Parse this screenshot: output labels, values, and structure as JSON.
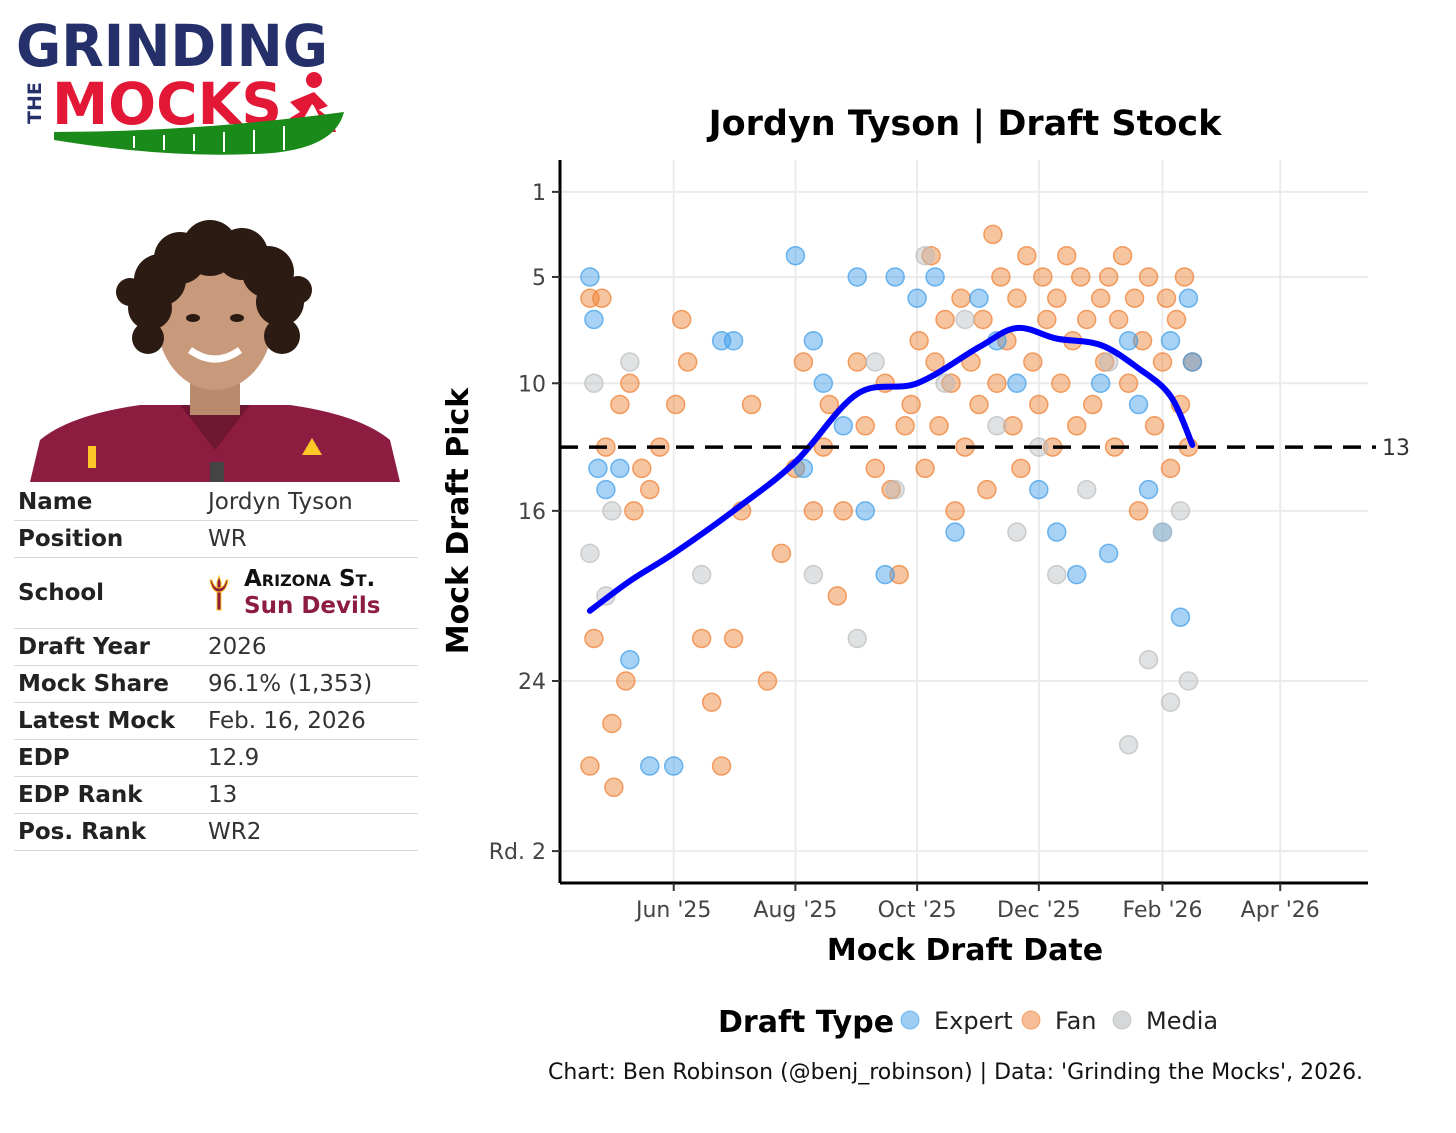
{
  "logo": {
    "line1": "GRINDING",
    "line2": "MOCKS",
    "the": "THE"
  },
  "player_info": {
    "rows": [
      {
        "label": "Name",
        "value": "Jordyn Tyson"
      },
      {
        "label": "Position",
        "value": "WR"
      },
      {
        "label": "School",
        "abbr": "Arizona St.",
        "mascot": "Sun Devils"
      },
      {
        "label": "Draft Year",
        "value": "2026"
      },
      {
        "label": "Mock Share",
        "value": "96.1% (1,353)"
      },
      {
        "label": "Latest Mock",
        "value": "Feb. 16, 2026"
      },
      {
        "label": "EDP",
        "value": "12.9"
      },
      {
        "label": "EDP Rank",
        "value": "13"
      },
      {
        "label": "Pos. Rank",
        "value": "WR2"
      }
    ]
  },
  "colors": {
    "navy": "#25306a",
    "red": "#e31837",
    "green": "#1a8a1a",
    "maroon": "#8c1d40",
    "gold": "#ffc627",
    "expert": "#3b9be8",
    "fan": "#ee7c2d",
    "media": "#b9bcbe",
    "trend": "#0000ff"
  },
  "credit": "Chart: Ben Robinson (@benj_robinson) | Data: 'Grinding the Mocks', 2026.",
  "chart_data": {
    "type": "scatter",
    "title": "Jordyn Tyson | Draft Stock",
    "xlabel": "Mock Draft Date",
    "ylabel": "Mock Draft Pick",
    "x_axis": {
      "min": "2025-04-05",
      "max": "2026-05-15",
      "ticks": [
        {
          "date": "2025-06-01",
          "label": "Jun '25"
        },
        {
          "date": "2025-08-01",
          "label": "Aug '25"
        },
        {
          "date": "2025-10-01",
          "label": "Oct '25"
        },
        {
          "date": "2025-12-01",
          "label": "Dec '25"
        },
        {
          "date": "2026-02-01",
          "label": "Feb '26"
        },
        {
          "date": "2026-04-01",
          "label": "Apr '26"
        }
      ]
    },
    "y_axis": {
      "reversed": true,
      "min": -0.5,
      "max": 33.5,
      "ticks": [
        {
          "value": 1,
          "label": "1"
        },
        {
          "value": 5,
          "label": "5"
        },
        {
          "value": 10,
          "label": "10"
        },
        {
          "value": 16,
          "label": "16"
        },
        {
          "value": 24,
          "label": "24"
        },
        {
          "value": 32,
          "label": "Rd. 2"
        }
      ]
    },
    "grid": true,
    "reference_line": {
      "value": 13,
      "label": "13",
      "style": "dashed"
    },
    "legend": {
      "title": "Draft Type",
      "position": "bottom",
      "entries": [
        "Expert",
        "Fan",
        "Media"
      ]
    },
    "trend": {
      "type": "smooth",
      "points": [
        [
          "2025-04-20",
          20.7
        ],
        [
          "2025-05-10",
          19.3
        ],
        [
          "2025-06-01",
          18.0
        ],
        [
          "2025-07-01",
          16.0
        ],
        [
          "2025-08-01",
          13.7
        ],
        [
          "2025-09-01",
          10.5
        ],
        [
          "2025-10-01",
          10.0
        ],
        [
          "2025-11-01",
          8.3
        ],
        [
          "2025-11-20",
          7.4
        ],
        [
          "2025-12-10",
          7.9
        ],
        [
          "2026-01-01",
          8.2
        ],
        [
          "2026-01-20",
          9.3
        ],
        [
          "2026-02-05",
          10.6
        ],
        [
          "2026-02-16",
          12.9
        ]
      ]
    },
    "series": [
      {
        "name": "Fan",
        "points": [
          [
            "2025-04-20",
            6
          ],
          [
            "2025-04-22",
            22
          ],
          [
            "2025-04-26",
            6
          ],
          [
            "2025-04-20",
            28
          ],
          [
            "2025-04-28",
            13
          ],
          [
            "2025-05-01",
            26
          ],
          [
            "2025-05-02",
            29
          ],
          [
            "2025-05-05",
            11
          ],
          [
            "2025-05-08",
            24
          ],
          [
            "2025-05-10",
            10
          ],
          [
            "2025-05-12",
            16
          ],
          [
            "2025-05-16",
            14
          ],
          [
            "2025-05-20",
            15
          ],
          [
            "2025-05-25",
            13
          ],
          [
            "2025-06-02",
            11
          ],
          [
            "2025-06-05",
            7
          ],
          [
            "2025-06-08",
            9
          ],
          [
            "2025-06-15",
            22
          ],
          [
            "2025-06-20",
            25
          ],
          [
            "2025-06-25",
            28
          ],
          [
            "2025-07-01",
            22
          ],
          [
            "2025-07-05",
            16
          ],
          [
            "2025-07-10",
            11
          ],
          [
            "2025-07-18",
            24
          ],
          [
            "2025-07-25",
            18
          ],
          [
            "2025-08-01",
            14
          ],
          [
            "2025-08-05",
            9
          ],
          [
            "2025-08-10",
            16
          ],
          [
            "2025-08-15",
            13
          ],
          [
            "2025-08-18",
            11
          ],
          [
            "2025-08-22",
            20
          ],
          [
            "2025-08-25",
            16
          ],
          [
            "2025-09-01",
            9
          ],
          [
            "2025-09-05",
            12
          ],
          [
            "2025-09-10",
            14
          ],
          [
            "2025-09-15",
            10
          ],
          [
            "2025-09-18",
            15
          ],
          [
            "2025-09-22",
            19
          ],
          [
            "2025-09-25",
            12
          ],
          [
            "2025-09-28",
            11
          ],
          [
            "2025-10-02",
            8
          ],
          [
            "2025-10-05",
            14
          ],
          [
            "2025-10-08",
            4
          ],
          [
            "2025-10-10",
            9
          ],
          [
            "2025-10-12",
            12
          ],
          [
            "2025-10-15",
            7
          ],
          [
            "2025-10-18",
            10
          ],
          [
            "2025-10-20",
            16
          ],
          [
            "2025-10-23",
            6
          ],
          [
            "2025-10-25",
            13
          ],
          [
            "2025-10-28",
            9
          ],
          [
            "2025-11-01",
            11
          ],
          [
            "2025-11-03",
            7
          ],
          [
            "2025-11-05",
            15
          ],
          [
            "2025-11-08",
            3
          ],
          [
            "2025-11-10",
            10
          ],
          [
            "2025-11-12",
            5
          ],
          [
            "2025-11-15",
            8
          ],
          [
            "2025-11-18",
            12
          ],
          [
            "2025-11-20",
            6
          ],
          [
            "2025-11-22",
            14
          ],
          [
            "2025-11-25",
            4
          ],
          [
            "2025-11-28",
            9
          ],
          [
            "2025-12-01",
            11
          ],
          [
            "2025-12-03",
            5
          ],
          [
            "2025-12-05",
            7
          ],
          [
            "2025-12-08",
            13
          ],
          [
            "2025-12-10",
            6
          ],
          [
            "2025-12-12",
            10
          ],
          [
            "2025-12-15",
            4
          ],
          [
            "2025-12-18",
            8
          ],
          [
            "2025-12-20",
            12
          ],
          [
            "2025-12-22",
            5
          ],
          [
            "2025-12-25",
            7
          ],
          [
            "2025-12-28",
            11
          ],
          [
            "2026-01-01",
            6
          ],
          [
            "2026-01-03",
            9
          ],
          [
            "2026-01-05",
            5
          ],
          [
            "2026-01-08",
            13
          ],
          [
            "2026-01-10",
            7
          ],
          [
            "2026-01-12",
            4
          ],
          [
            "2026-01-15",
            10
          ],
          [
            "2026-01-18",
            6
          ],
          [
            "2026-01-20",
            16
          ],
          [
            "2026-01-22",
            8
          ],
          [
            "2026-01-25",
            5
          ],
          [
            "2026-01-28",
            12
          ],
          [
            "2026-02-01",
            9
          ],
          [
            "2026-02-03",
            6
          ],
          [
            "2026-02-05",
            14
          ],
          [
            "2026-02-08",
            7
          ],
          [
            "2026-02-10",
            11
          ],
          [
            "2026-02-12",
            5
          ],
          [
            "2026-02-14",
            13
          ],
          [
            "2026-02-16",
            9
          ]
        ]
      },
      {
        "name": "Expert",
        "points": [
          [
            "2025-04-20",
            5
          ],
          [
            "2025-04-22",
            7
          ],
          [
            "2025-04-24",
            14
          ],
          [
            "2025-04-28",
            15
          ],
          [
            "2025-05-05",
            14
          ],
          [
            "2025-05-10",
            23
          ],
          [
            "2025-05-20",
            28
          ],
          [
            "2025-06-01",
            28
          ],
          [
            "2025-06-25",
            8
          ],
          [
            "2025-07-01",
            8
          ],
          [
            "2025-08-01",
            4
          ],
          [
            "2025-08-05",
            14
          ],
          [
            "2025-08-10",
            8
          ],
          [
            "2025-08-15",
            10
          ],
          [
            "2025-08-25",
            12
          ],
          [
            "2025-09-01",
            5
          ],
          [
            "2025-09-05",
            16
          ],
          [
            "2025-09-15",
            19
          ],
          [
            "2025-09-20",
            5
          ],
          [
            "2025-10-01",
            6
          ],
          [
            "2025-10-10",
            5
          ],
          [
            "2025-10-20",
            17
          ],
          [
            "2025-11-01",
            6
          ],
          [
            "2025-11-10",
            8
          ],
          [
            "2025-11-20",
            10
          ],
          [
            "2025-12-01",
            15
          ],
          [
            "2025-12-10",
            17
          ],
          [
            "2025-12-20",
            19
          ],
          [
            "2026-01-01",
            10
          ],
          [
            "2026-01-05",
            18
          ],
          [
            "2026-01-15",
            8
          ],
          [
            "2026-01-20",
            11
          ],
          [
            "2026-01-25",
            15
          ],
          [
            "2026-02-01",
            17
          ],
          [
            "2026-02-05",
            8
          ],
          [
            "2026-02-10",
            21
          ],
          [
            "2026-02-14",
            6
          ],
          [
            "2026-02-16",
            9
          ]
        ]
      },
      {
        "name": "Media",
        "points": [
          [
            "2025-04-20",
            18
          ],
          [
            "2025-04-22",
            10
          ],
          [
            "2025-04-28",
            20
          ],
          [
            "2025-05-01",
            16
          ],
          [
            "2025-05-10",
            9
          ],
          [
            "2025-06-15",
            19
          ],
          [
            "2025-08-10",
            19
          ],
          [
            "2025-09-01",
            22
          ],
          [
            "2025-09-10",
            9
          ],
          [
            "2025-09-20",
            15
          ],
          [
            "2025-10-05",
            4
          ],
          [
            "2025-10-15",
            10
          ],
          [
            "2025-10-25",
            7
          ],
          [
            "2025-11-10",
            12
          ],
          [
            "2025-11-20",
            17
          ],
          [
            "2025-12-01",
            13
          ],
          [
            "2025-12-10",
            19
          ],
          [
            "2025-12-25",
            15
          ],
          [
            "2026-01-05",
            9
          ],
          [
            "2026-01-15",
            27
          ],
          [
            "2026-01-25",
            23
          ],
          [
            "2026-02-01",
            17
          ],
          [
            "2026-02-05",
            25
          ],
          [
            "2026-02-10",
            16
          ],
          [
            "2026-02-14",
            24
          ]
        ]
      }
    ]
  }
}
